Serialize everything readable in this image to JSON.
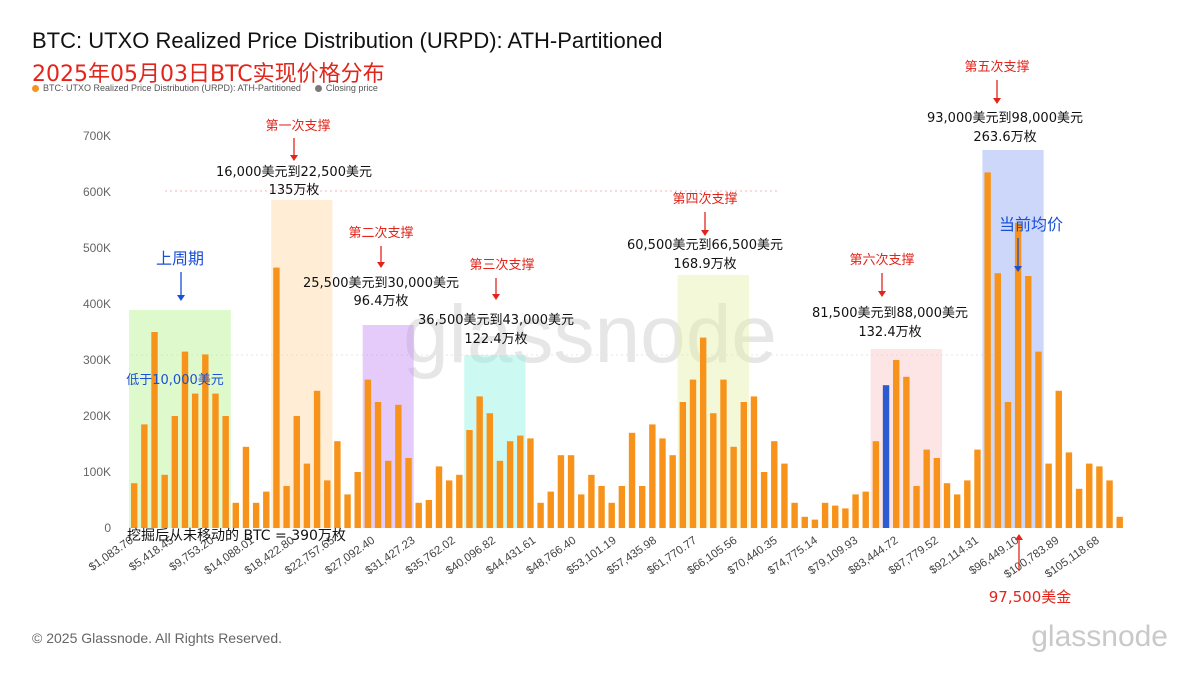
{
  "header": {
    "title": "BTC: UTXO Realized Price Distribution (URPD): ATH-Partitioned",
    "subtitle": "2025年05月03日BTC实现价格分布"
  },
  "legend": [
    {
      "label": "BTC: UTXO Realized Price Distribution (URPD): ATH-Partitioned",
      "color": "#f7931a"
    },
    {
      "label": "Closing price",
      "color": "#7a7a7a"
    }
  ],
  "footer": {
    "copyright": "© 2025 Glassnode. All Rights Reserved.",
    "brand": "glassnode"
  },
  "watermark": "glassnode",
  "colors": {
    "bar": "#f7931a",
    "closing": "#2d5bd0",
    "annotation_red": "#e1251b",
    "annotation_blue": "#1a4fd6"
  },
  "chart_data": {
    "type": "bar",
    "title": "BTC: UTXO Realized Price Distribution (URPD): ATH-Partitioned",
    "ylim": [
      0,
      700000
    ],
    "yticks": [
      "0",
      "100K",
      "200K",
      "300K",
      "400K",
      "500K",
      "600K",
      "700K"
    ],
    "xtick_labels": [
      "$1,083.70",
      "$5,418.45",
      "$9,753.20",
      "$14,088.01",
      "$18,422.80",
      "$22,757.65",
      "$27,092.40",
      "$31,427.23",
      "$35,762.02",
      "$40,096.82",
      "$44,431.61",
      "$48,766.40",
      "$53,101.19",
      "$57,435.98",
      "$61,770.77",
      "$66,105.56",
      "$70,440.35",
      "$74,775.14",
      "$79,109.93",
      "$83,444.72",
      "$87,779.52",
      "$92,114.31",
      "$96,449.10",
      "$100,783.89",
      "$105,118.68"
    ],
    "closing_price_index": 74,
    "values": [
      80000,
      185000,
      350000,
      95000,
      200000,
      315000,
      240000,
      310000,
      240000,
      200000,
      45000,
      145000,
      45000,
      65000,
      465000,
      75000,
      200000,
      115000,
      245000,
      85000,
      155000,
      60000,
      100000,
      265000,
      225000,
      120000,
      220000,
      125000,
      45000,
      50000,
      110000,
      85000,
      95000,
      175000,
      235000,
      205000,
      120000,
      155000,
      165000,
      160000,
      45000,
      65000,
      130000,
      130000,
      60000,
      95000,
      75000,
      45000,
      75000,
      170000,
      75000,
      185000,
      160000,
      130000,
      225000,
      265000,
      340000,
      205000,
      265000,
      145000,
      225000,
      235000,
      100000,
      155000,
      115000,
      45000,
      20000,
      15000,
      45000,
      40000,
      35000,
      60000,
      65000,
      155000,
      255000,
      300000,
      270000,
      75000,
      140000,
      125000,
      80000,
      60000,
      85000,
      140000,
      635000,
      455000,
      225000,
      545000,
      450000,
      315000,
      115000,
      245000,
      135000,
      70000,
      115000,
      110000,
      85000,
      20000
    ],
    "annotations": {
      "prev_cycle": {
        "title": "上周期",
        "text": "低于10,000美元"
      },
      "s1": {
        "title": "第一次支撑",
        "range": "16,000美元到22,500美元",
        "amount": "135万枚"
      },
      "s2": {
        "title": "第二次支撑",
        "range": "25,500美元到30,000美元",
        "amount": "96.4万枚"
      },
      "s3": {
        "title": "第三次支撑",
        "range": "36,500美元到43,000美元",
        "amount": "122.4万枚"
      },
      "s4": {
        "title": "第四次支撑",
        "range": "60,500美元到66,500美元",
        "amount": "168.9万枚"
      },
      "s5": {
        "title": "第五次支撑",
        "range": "93,000美元到98,000美元",
        "amount": "263.6万枚"
      },
      "s6": {
        "title": "第六次支撑",
        "range": "81,500美元到88,000美元",
        "amount": "132.4万枚"
      },
      "current": {
        "title": "当前均价"
      },
      "price": {
        "text": "97,500美金"
      },
      "unmoved": {
        "text": "挖掘后从未移动的 BTC = 390万枚"
      }
    }
  }
}
